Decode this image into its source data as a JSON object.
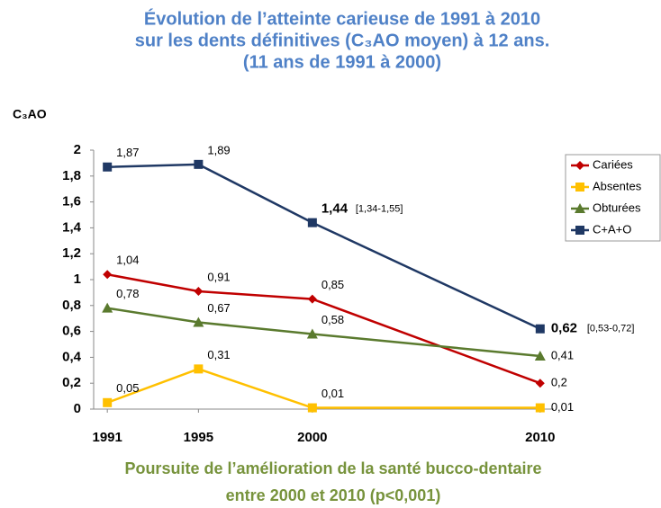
{
  "chart_data": {
    "type": "line",
    "title": [
      "Évolution de l’atteinte carieuse de 1991 à 2010",
      "sur les dents définitives (C₃AO moyen) à 12 ans.",
      "(11 ans de 1991 à 2000)"
    ],
    "y_label": "C₃AO",
    "subtitle": [
      "Poursuite de l’amélioration de la santé bucco-dentaire",
      "entre 2000 et 2010 (p<0,001)"
    ],
    "x": [
      1991,
      1995,
      2000,
      2010
    ],
    "xlim": [
      1990.4,
      2010.6
    ],
    "xticks": [
      1991,
      1995,
      2000,
      2010
    ],
    "ylim": [
      0,
      2
    ],
    "yticks": [
      0,
      {
        "value": 0.2,
        "label": "0,2"
      },
      {
        "value": 0.4,
        "label": "0,4"
      },
      {
        "value": 0.6,
        "label": "0,6"
      },
      {
        "value": 0.8,
        "label": "0,8"
      },
      1,
      {
        "value": 1.2,
        "label": "1,2"
      },
      {
        "value": 1.4,
        "label": "1,4"
      },
      {
        "value": 1.6,
        "label": "1,6"
      },
      {
        "value": 1.8,
        "label": "1,8"
      },
      2
    ],
    "legend": "right",
    "series": [
      {
        "name": "Cariées",
        "color": "#c00000",
        "marker": "diamond",
        "values": [
          1.04,
          0.91,
          0.85,
          0.2
        ],
        "value_labels": [
          "1,04",
          "0,91",
          "0,85",
          "0,2"
        ]
      },
      {
        "name": "Absentes",
        "color": "#ffc000",
        "marker": "square",
        "values": [
          0.05,
          0.31,
          0.01,
          0.01
        ],
        "value_labels": [
          "0,05",
          "0,31",
          "0,01",
          "0,01"
        ]
      },
      {
        "name": "Obturées",
        "color": "#5a7a2e",
        "marker": "triangle",
        "values": [
          0.78,
          0.67,
          0.58,
          0.41
        ],
        "value_labels": [
          "0,78",
          "0,67",
          "0,58",
          "0,41"
        ]
      },
      {
        "name": "C+A+O",
        "color": "#1f3864",
        "marker": "square",
        "values": [
          1.87,
          1.89,
          1.44,
          0.62
        ],
        "value_labels": [
          "1,87",
          "1,89",
          "1,44",
          "0,62"
        ]
      }
    ],
    "annotations": [
      {
        "text": "[1,34-1,55]",
        "x": 2000,
        "y": 1.44
      },
      {
        "text": "[0,53-0,72]",
        "x": 2010,
        "y": 0.62
      }
    ]
  }
}
